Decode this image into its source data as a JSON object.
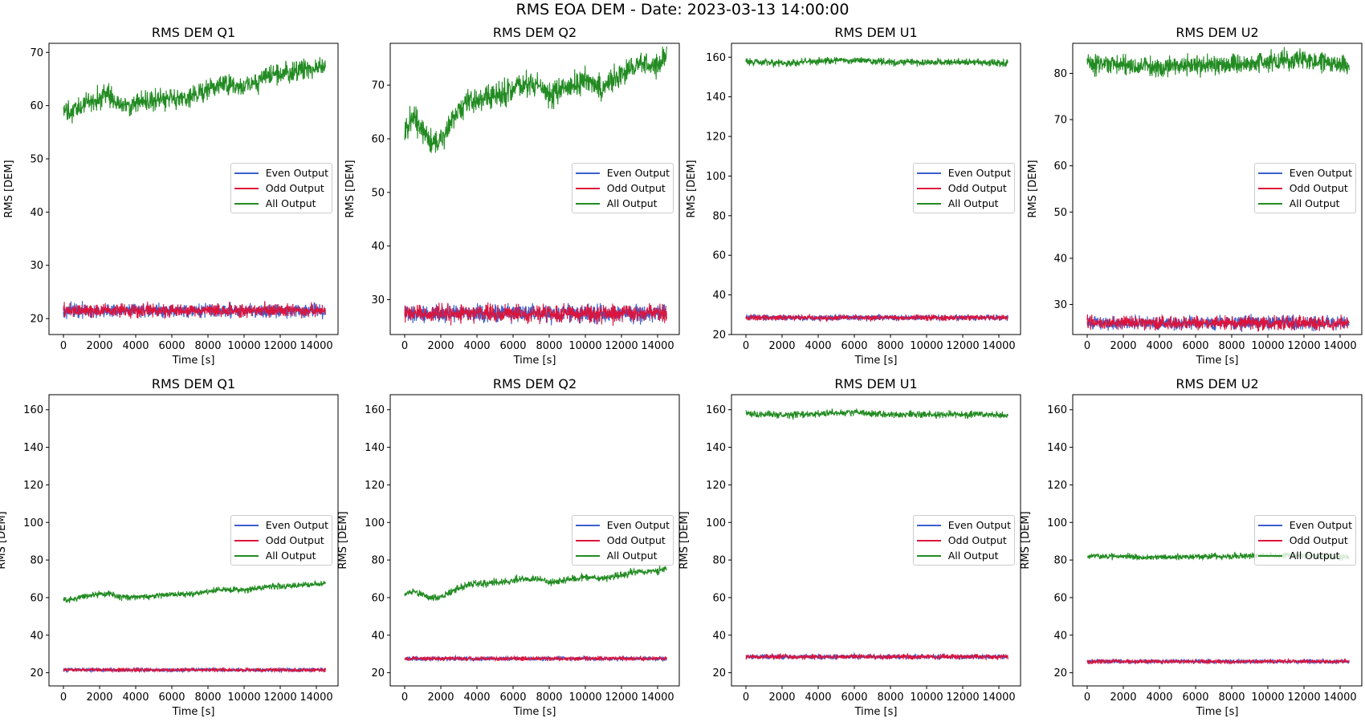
{
  "suptitle": "RMS EOA DEM - Date: 2023-03-13 14:00:00",
  "colors": {
    "even": "#3a5fcd",
    "odd": "#dc143c",
    "all": "#228b22"
  },
  "chart_data": [
    {
      "type": "line",
      "title": "RMS DEM Q1",
      "xlabel": "Time [s]",
      "ylabel": "RMS [DEM]",
      "xlim": [
        -800,
        15200
      ],
      "ylim": [
        17,
        71.7
      ],
      "xticks": [
        0,
        2000,
        4000,
        6000,
        8000,
        10000,
        12000,
        14000
      ],
      "yticks": [
        20,
        30,
        40,
        50,
        60,
        70
      ],
      "legend": "center-right",
      "series": [
        {
          "name": "Even Output",
          "color": "#3a5fcd",
          "noise": 0.8,
          "values": [
            [
              0,
              21.5
            ],
            [
              14500,
              21.5
            ]
          ]
        },
        {
          "name": "Odd Output",
          "color": "#dc143c",
          "noise": 0.8,
          "values": [
            [
              0,
              21.5
            ],
            [
              14500,
              21.5
            ]
          ]
        },
        {
          "name": "All Output",
          "color": "#228b22",
          "noise": 1.2,
          "values": [
            [
              0,
              59
            ],
            [
              500,
              58.5
            ],
            [
              1500,
              61
            ],
            [
              2500,
              62
            ],
            [
              3200,
              60
            ],
            [
              4000,
              60.5
            ],
            [
              5000,
              61
            ],
            [
              6000,
              61.5
            ],
            [
              7000,
              61.5
            ],
            [
              8000,
              63
            ],
            [
              9000,
              64
            ],
            [
              10000,
              63.5
            ],
            [
              11000,
              65
            ],
            [
              12000,
              66
            ],
            [
              13000,
              66.5
            ],
            [
              14500,
              67.5
            ]
          ]
        }
      ]
    },
    {
      "type": "line",
      "title": "RMS DEM Q2",
      "xlabel": "Time [s]",
      "ylabel": "RMS [DEM]",
      "xlim": [
        -800,
        15200
      ],
      "ylim": [
        23.5,
        77.8
      ],
      "xticks": [
        0,
        2000,
        4000,
        6000,
        8000,
        10000,
        12000,
        14000
      ],
      "yticks": [
        30,
        40,
        50,
        60,
        70
      ],
      "legend": "center-right",
      "series": [
        {
          "name": "Even Output",
          "color": "#3a5fcd",
          "noise": 1.0,
          "values": [
            [
              0,
              27.5
            ],
            [
              14500,
              27.5
            ]
          ]
        },
        {
          "name": "Odd Output",
          "color": "#dc143c",
          "noise": 1.0,
          "values": [
            [
              0,
              27.5
            ],
            [
              14500,
              27.5
            ]
          ]
        },
        {
          "name": "All Output",
          "color": "#228b22",
          "noise": 1.4,
          "values": [
            [
              0,
              62
            ],
            [
              500,
              64
            ],
            [
              1000,
              61.5
            ],
            [
              1500,
              59
            ],
            [
              2000,
              59.5
            ],
            [
              2800,
              64
            ],
            [
              3500,
              67
            ],
            [
              4500,
              67.5
            ],
            [
              5500,
              68.5
            ],
            [
              6500,
              70
            ],
            [
              7500,
              70
            ],
            [
              8000,
              68
            ],
            [
              9000,
              69.5
            ],
            [
              10000,
              71
            ],
            [
              11000,
              69.5
            ],
            [
              12000,
              72
            ],
            [
              13000,
              74
            ],
            [
              14000,
              73.5
            ],
            [
              14500,
              75.5
            ]
          ]
        }
      ]
    },
    {
      "type": "line",
      "title": "RMS DEM U1",
      "xlabel": "Time [s]",
      "ylabel": "RMS [DEM]",
      "xlim": [
        -800,
        15200
      ],
      "ylim": [
        20,
        167
      ],
      "xticks": [
        0,
        2000,
        4000,
        6000,
        8000,
        10000,
        12000,
        14000
      ],
      "yticks": [
        20,
        40,
        60,
        80,
        100,
        120,
        140,
        160
      ],
      "legend": "center-right",
      "series": [
        {
          "name": "Even Output",
          "color": "#3a5fcd",
          "noise": 0.9,
          "values": [
            [
              0,
              28.5
            ],
            [
              14500,
              28.5
            ]
          ]
        },
        {
          "name": "Odd Output",
          "color": "#dc143c",
          "noise": 0.9,
          "values": [
            [
              0,
              28.5
            ],
            [
              14500,
              28.5
            ]
          ]
        },
        {
          "name": "All Output",
          "color": "#228b22",
          "noise": 1.1,
          "values": [
            [
              0,
              158
            ],
            [
              2000,
              157
            ],
            [
              4000,
              158
            ],
            [
              6000,
              158.5
            ],
            [
              8000,
              157.5
            ],
            [
              10000,
              157.5
            ],
            [
              12000,
              157.5
            ],
            [
              14500,
              157
            ]
          ]
        }
      ]
    },
    {
      "type": "line",
      "title": "RMS DEM U2",
      "xlabel": "Time [s]",
      "ylabel": "RMS [DEM]",
      "xlim": [
        -800,
        15200
      ],
      "ylim": [
        23.5,
        86.5
      ],
      "xticks": [
        0,
        2000,
        4000,
        6000,
        8000,
        10000,
        12000,
        14000
      ],
      "yticks": [
        30,
        40,
        50,
        60,
        70,
        80
      ],
      "legend": "center-right",
      "series": [
        {
          "name": "Even Output",
          "color": "#3a5fcd",
          "noise": 0.9,
          "values": [
            [
              0,
              26
            ],
            [
              14500,
              26
            ]
          ]
        },
        {
          "name": "Odd Output",
          "color": "#dc143c",
          "noise": 0.9,
          "values": [
            [
              0,
              26
            ],
            [
              14500,
              26
            ]
          ]
        },
        {
          "name": "All Output",
          "color": "#228b22",
          "noise": 1.3,
          "values": [
            [
              0,
              82
            ],
            [
              4000,
              81.5
            ],
            [
              8000,
              82
            ],
            [
              10000,
              82.5
            ],
            [
              12000,
              83
            ],
            [
              14500,
              81.5
            ]
          ]
        }
      ]
    },
    {
      "type": "line",
      "title": "RMS DEM Q1",
      "xlabel": "Time [s]",
      "ylabel": "RMS [DEM]",
      "xlim": [
        -800,
        15200
      ],
      "ylim": [
        13,
        168
      ],
      "xticks": [
        0,
        2000,
        4000,
        6000,
        8000,
        10000,
        12000,
        14000
      ],
      "yticks": [
        20,
        40,
        60,
        80,
        100,
        120,
        140,
        160
      ],
      "legend": "center-right",
      "series": [
        {
          "name": "Even Output",
          "color": "#3a5fcd",
          "noise": 0.6,
          "values": [
            [
              0,
              21.5
            ],
            [
              14500,
              21.5
            ]
          ]
        },
        {
          "name": "Odd Output",
          "color": "#dc143c",
          "noise": 0.6,
          "values": [
            [
              0,
              21.5
            ],
            [
              14500,
              21.5
            ]
          ]
        },
        {
          "name": "All Output",
          "color": "#228b22",
          "noise": 1.0,
          "values": [
            [
              0,
              59.5
            ],
            [
              500,
              59
            ],
            [
              1500,
              61.5
            ],
            [
              2500,
              62
            ],
            [
              3200,
              60
            ],
            [
              4000,
              60.5
            ],
            [
              5000,
              61
            ],
            [
              6000,
              61.5
            ],
            [
              7000,
              62
            ],
            [
              8000,
              63.5
            ],
            [
              9000,
              64.5
            ],
            [
              10000,
              64
            ],
            [
              11000,
              65.5
            ],
            [
              12000,
              66
            ],
            [
              13000,
              66.5
            ],
            [
              14500,
              67.5
            ]
          ]
        }
      ]
    },
    {
      "type": "line",
      "title": "RMS DEM Q2",
      "xlabel": "Time [s]",
      "ylabel": "RMS [DEM]",
      "xlim": [
        -800,
        15200
      ],
      "ylim": [
        13,
        168
      ],
      "xticks": [
        0,
        2000,
        4000,
        6000,
        8000,
        10000,
        12000,
        14000
      ],
      "yticks": [
        20,
        40,
        60,
        80,
        100,
        120,
        140,
        160
      ],
      "legend": "center-right",
      "series": [
        {
          "name": "Even Output",
          "color": "#3a5fcd",
          "noise": 0.7,
          "values": [
            [
              0,
              27.5
            ],
            [
              14500,
              27.5
            ]
          ]
        },
        {
          "name": "Odd Output",
          "color": "#dc143c",
          "noise": 0.7,
          "values": [
            [
              0,
              27.5
            ],
            [
              14500,
              27.5
            ]
          ]
        },
        {
          "name": "All Output",
          "color": "#228b22",
          "noise": 1.2,
          "values": [
            [
              0,
              62
            ],
            [
              500,
              63.5
            ],
            [
              1000,
              61.5
            ],
            [
              1500,
              59.5
            ],
            [
              2000,
              60
            ],
            [
              2800,
              64
            ],
            [
              3500,
              67
            ],
            [
              4500,
              67.5
            ],
            [
              5500,
              68.5
            ],
            [
              6500,
              70
            ],
            [
              7500,
              70
            ],
            [
              8000,
              68
            ],
            [
              9000,
              69.5
            ],
            [
              10000,
              71
            ],
            [
              11000,
              70
            ],
            [
              12000,
              72
            ],
            [
              13000,
              74
            ],
            [
              14000,
              74
            ],
            [
              14500,
              75.5
            ]
          ]
        }
      ]
    },
    {
      "type": "line",
      "title": "RMS DEM U1",
      "xlabel": "Time [s]",
      "ylabel": "RMS [DEM]",
      "xlim": [
        -800,
        15200
      ],
      "ylim": [
        13,
        168
      ],
      "xticks": [
        0,
        2000,
        4000,
        6000,
        8000,
        10000,
        12000,
        14000
      ],
      "yticks": [
        20,
        40,
        60,
        80,
        100,
        120,
        140,
        160
      ],
      "legend": "center-right",
      "series": [
        {
          "name": "Even Output",
          "color": "#3a5fcd",
          "noise": 0.8,
          "values": [
            [
              0,
              28.5
            ],
            [
              14500,
              28.5
            ]
          ]
        },
        {
          "name": "Odd Output",
          "color": "#dc143c",
          "noise": 0.8,
          "values": [
            [
              0,
              28.5
            ],
            [
              14500,
              28.5
            ]
          ]
        },
        {
          "name": "All Output",
          "color": "#228b22",
          "noise": 1.1,
          "values": [
            [
              0,
              158
            ],
            [
              2000,
              157
            ],
            [
              4000,
              158
            ],
            [
              6000,
              158.5
            ],
            [
              8000,
              157.5
            ],
            [
              10000,
              157.5
            ],
            [
              12000,
              157.5
            ],
            [
              14500,
              157
            ]
          ]
        }
      ]
    },
    {
      "type": "line",
      "title": "RMS DEM U2",
      "xlabel": "Time [s]",
      "ylabel": "RMS [DEM]",
      "xlim": [
        -800,
        15200
      ],
      "ylim": [
        13,
        168
      ],
      "xticks": [
        0,
        2000,
        4000,
        6000,
        8000,
        10000,
        12000,
        14000
      ],
      "yticks": [
        20,
        40,
        60,
        80,
        100,
        120,
        140,
        160
      ],
      "legend": "center-right",
      "series": [
        {
          "name": "Even Output",
          "color": "#3a5fcd",
          "noise": 0.7,
          "values": [
            [
              0,
              26
            ],
            [
              14500,
              26
            ]
          ]
        },
        {
          "name": "Odd Output",
          "color": "#dc143c",
          "noise": 0.7,
          "values": [
            [
              0,
              26
            ],
            [
              14500,
              26
            ]
          ]
        },
        {
          "name": "All Output",
          "color": "#228b22",
          "noise": 1.0,
          "values": [
            [
              0,
              82
            ],
            [
              4000,
              81.5
            ],
            [
              8000,
              82
            ],
            [
              10000,
              82.5
            ],
            [
              12000,
              82.5
            ],
            [
              14500,
              81.5
            ]
          ]
        }
      ]
    }
  ]
}
